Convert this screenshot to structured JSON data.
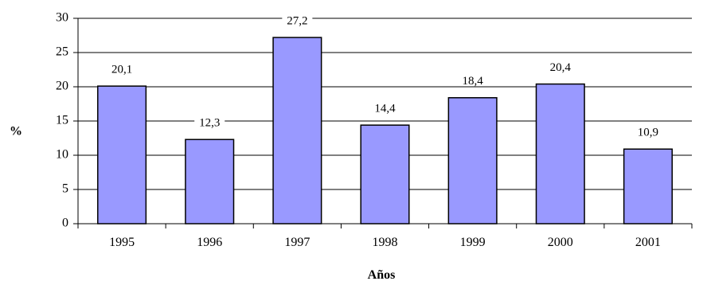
{
  "chart_data": {
    "type": "bar",
    "categories": [
      "1995",
      "1996",
      "1997",
      "1998",
      "1999",
      "2000",
      "2001"
    ],
    "values": [
      20.1,
      12.3,
      27.2,
      14.4,
      18.4,
      20.4,
      10.9
    ],
    "value_labels": [
      "20,1",
      "12,3",
      "27,2",
      "14,4",
      "18,4",
      "20,4",
      "10,9"
    ],
    "title": "",
    "xlabel": "Años",
    "ylabel": "%",
    "ylim": [
      0,
      30
    ],
    "yticks": [
      0,
      5,
      10,
      15,
      20,
      25,
      30
    ],
    "grid": true,
    "legend": "none",
    "bar_color": "#9999ff",
    "bar_edge_color": "#000000"
  }
}
